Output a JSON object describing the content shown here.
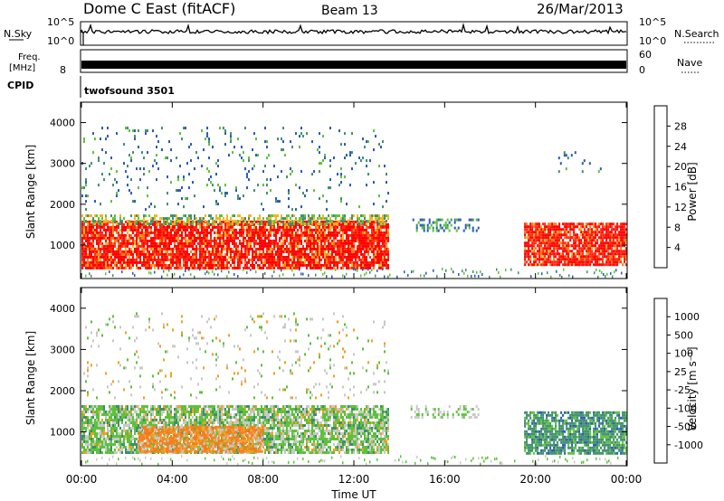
{
  "header": {
    "station": "Dome C East (fitACF)",
    "beam": "Beam 13",
    "date": "26/Mar/2013"
  },
  "noise_panel": {
    "left_label": "N.Sky",
    "left_ticks": [
      "10^5",
      "10^0"
    ],
    "right_ticks": [
      "10^5",
      "10^0"
    ],
    "right_label": "N.Search"
  },
  "freq_panel": {
    "left_label_line1": "Freq.",
    "left_label_line2": "[MHz]",
    "left_ticks": [
      "8"
    ],
    "right_ticks": [
      "60",
      "0"
    ],
    "right_label": "Nave"
  },
  "cpid": {
    "label": "CPID",
    "value": "twofsound 3501"
  },
  "chart_data": [
    {
      "type": "heatmap",
      "name": "power",
      "ylabel": "Slant Range [km]",
      "xlabel": "Time UT",
      "x_ticks": [
        "00:00",
        "04:00",
        "08:00",
        "12:00",
        "16:00",
        "20:00",
        "00:00"
      ],
      "x_range_hours": [
        0,
        24
      ],
      "y_ticks": [
        "1000",
        "2000",
        "3000",
        "4000"
      ],
      "ylim": [
        180,
        4500
      ],
      "colorbar": {
        "title": "Power [dB]",
        "ticks": [
          "4",
          "8",
          "12",
          "16",
          "20",
          "24",
          "28"
        ],
        "range": [
          0,
          30
        ],
        "colors": [
          "#1e1eff",
          "#2a5ab4",
          "#3f8f6e",
          "#5dc23a",
          "#f0b41e",
          "#ff7a1a",
          "#ff2a10",
          "#ff0000"
        ]
      },
      "regions": [
        {
          "t0": 0.0,
          "t1": 13.5,
          "r0": 450,
          "r1": 1600,
          "level": "strong",
          "value_db": 28
        },
        {
          "t0": 0.0,
          "t1": 13.5,
          "r0": 1500,
          "r1": 1750,
          "level": "medium",
          "value_db": 12
        },
        {
          "t0": 14.5,
          "t1": 17.5,
          "r0": 1350,
          "r1": 1650,
          "level": "weak",
          "value_db": 10
        },
        {
          "t0": 19.5,
          "t1": 24.0,
          "r0": 500,
          "r1": 1550,
          "level": "strong",
          "value_db": 26
        },
        {
          "t0": 0.0,
          "t1": 13.5,
          "r0": 1850,
          "r1": 3900,
          "level": "sparse",
          "value_db": 12
        },
        {
          "t0": 21.0,
          "t1": 23.0,
          "r0": 2800,
          "r1": 3300,
          "level": "sparse",
          "value_db": 10
        }
      ]
    },
    {
      "type": "heatmap",
      "name": "velocity",
      "ylabel": "Slant Range [km]",
      "xlabel": "Time UT",
      "x_ticks": [
        "00:00",
        "04:00",
        "08:00",
        "12:00",
        "16:00",
        "20:00",
        "00:00"
      ],
      "x_range_hours": [
        0,
        24
      ],
      "y_ticks": [
        "1000",
        "2000",
        "3000",
        "4000"
      ],
      "ylim": [
        180,
        4500
      ],
      "colorbar": {
        "title": "Velocity [m s⁻¹]",
        "ticks": [
          "1000",
          "500",
          "100",
          "25",
          "-25",
          "-100",
          "-500",
          "-1000"
        ],
        "colors": [
          "#1e3cff",
          "#2a5ab4",
          "#3f8f6e",
          "#5dc23a",
          "#c8c8c8",
          "#f0a01e",
          "#ff7a1a",
          "#ff2a10",
          "#ff0000"
        ]
      },
      "regions": [
        {
          "t0": 0.0,
          "t1": 13.5,
          "r0": 500,
          "r1": 1650,
          "level": "mixed",
          "value_ms": 50
        },
        {
          "t0": 2.5,
          "t1": 8.0,
          "r0": 550,
          "r1": 1150,
          "level": "negative",
          "value_ms": -300
        },
        {
          "t0": 14.5,
          "t1": 17.5,
          "r0": 1350,
          "r1": 1650,
          "level": "weak",
          "value_ms": 50
        },
        {
          "t0": 19.5,
          "t1": 24.0,
          "r0": 500,
          "r1": 1500,
          "level": "positive",
          "value_ms": 300
        },
        {
          "t0": 0.0,
          "t1": 13.5,
          "r0": 1850,
          "r1": 3900,
          "level": "sparse",
          "value_ms": 0
        }
      ]
    }
  ]
}
